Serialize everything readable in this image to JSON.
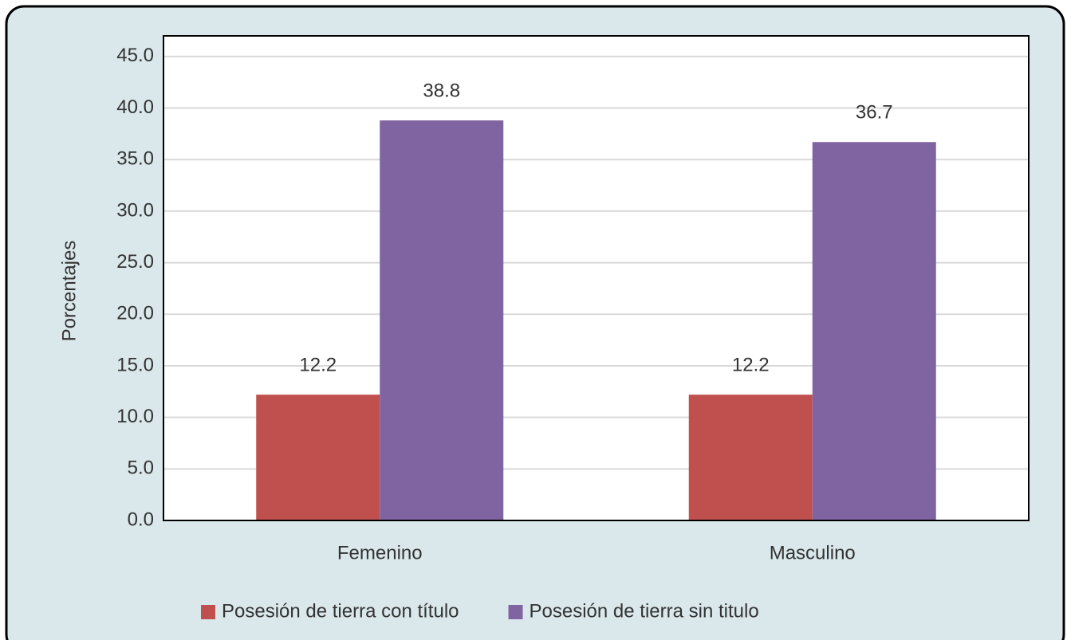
{
  "chart_data": {
    "type": "bar",
    "y_label": "Porcentajes",
    "categories": [
      "Femenino",
      "Masculino"
    ],
    "series": [
      {
        "name": "Posesión de tierra con título",
        "color": "#c0504d",
        "values": [
          12.2,
          12.2
        ]
      },
      {
        "name": "Posesión de tierra sin titulo",
        "color": "#8064a2",
        "values": [
          38.8,
          36.7
        ]
      }
    ],
    "ylim": [
      0,
      47
    ],
    "yticks": [
      {
        "value": 0,
        "label": "0.0"
      },
      {
        "value": 5,
        "label": "5.0"
      },
      {
        "value": 10,
        "label": "10.0"
      },
      {
        "value": 15,
        "label": "15.0"
      },
      {
        "value": 20,
        "label": "20.0"
      },
      {
        "value": 25,
        "label": "25.0"
      },
      {
        "value": 30,
        "label": "30.0"
      },
      {
        "value": 35,
        "label": "35.0"
      },
      {
        "value": 40,
        "label": "40.0"
      },
      {
        "value": 45,
        "label": "45.0"
      }
    ],
    "grid": true,
    "legend": "bottom"
  }
}
